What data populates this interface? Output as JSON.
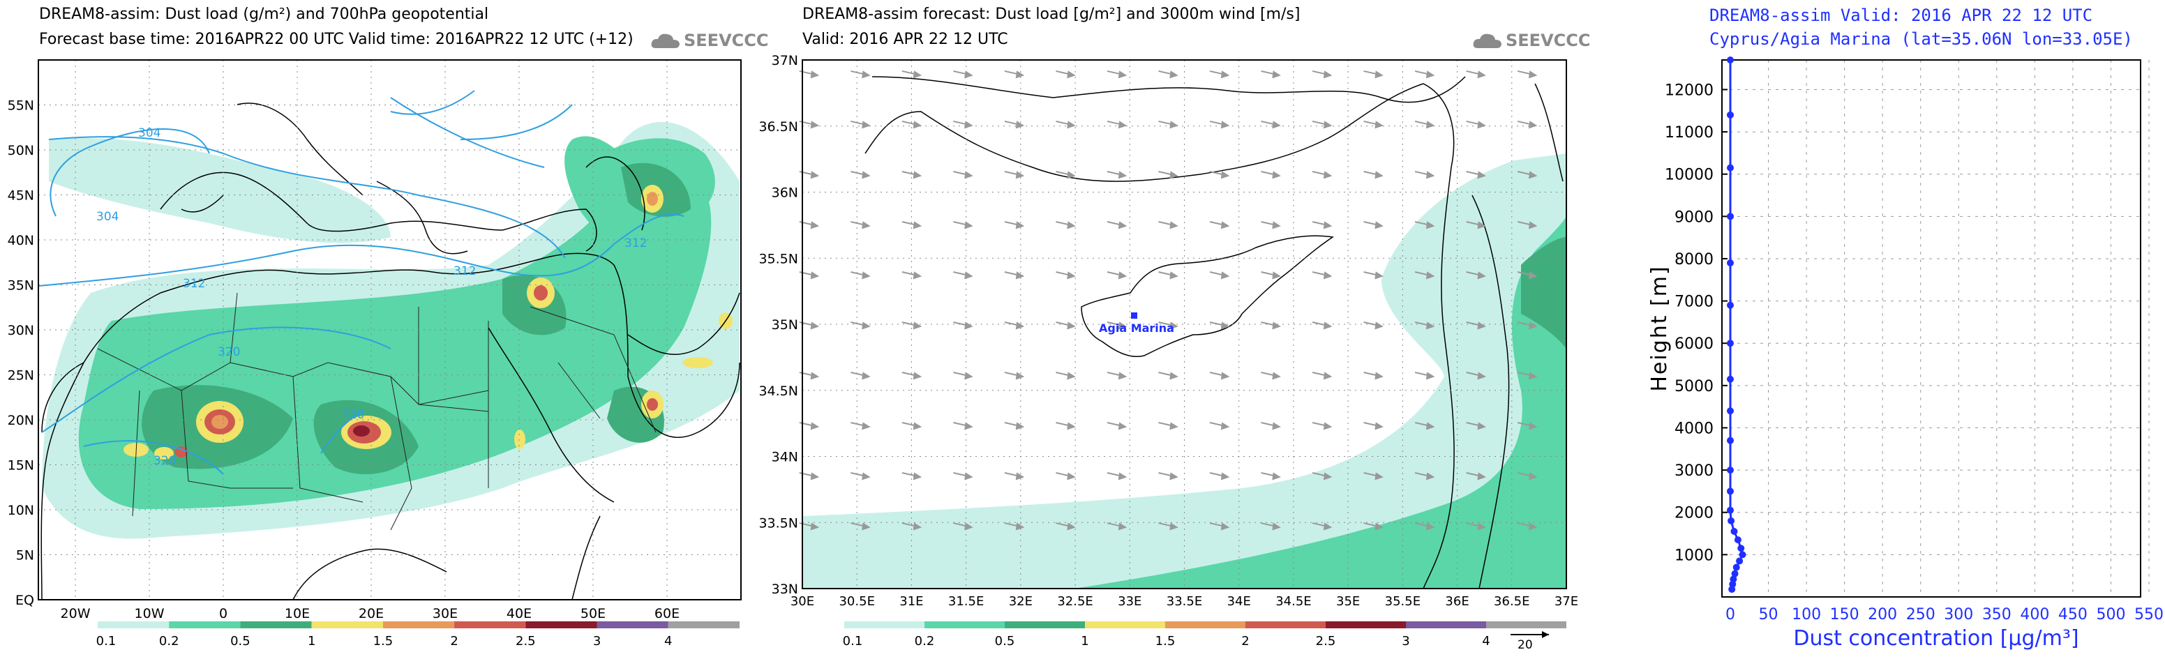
{
  "panel1": {
    "title": "DREAM8-assim: Dust load (g/m²) and 700hPa geopotential",
    "subtitle": "Forecast base time: 2016APR22 00 UTC   Valid time: 2016APR22 12 UTC   (+12)",
    "logo": "SEEVCCC",
    "lat_labels": [
      "55N",
      "50N",
      "45N",
      "40N",
      "35N",
      "30N",
      "25N",
      "20N",
      "15N",
      "10N",
      "5N",
      "EQ"
    ],
    "lon_labels": [
      "20W",
      "10W",
      "0",
      "10E",
      "20E",
      "30E",
      "40E",
      "50E",
      "60E"
    ],
    "contour_labels": [
      "304",
      "304",
      "312",
      "312",
      "312",
      "320",
      "320",
      "320"
    ],
    "colorbar_labels": [
      "0.1",
      "0.2",
      "0.5",
      "1",
      "1.5",
      "2",
      "2.5",
      "3",
      "4"
    ]
  },
  "panel2": {
    "title": "DREAM8-assim forecast: Dust load [g/m²] and 3000m wind [m/s]",
    "subtitle": "Valid: 2016 APR 22   12 UTC",
    "logo": "SEEVCCC",
    "lat_labels": [
      "37N",
      "36.5N",
      "36N",
      "35.5N",
      "35N",
      "34.5N",
      "34N",
      "33.5N",
      "33N"
    ],
    "lon_labels": [
      "30E",
      "30.5E",
      "31E",
      "31.5E",
      "32E",
      "32.5E",
      "33E",
      "33.5E",
      "34E",
      "34.5E",
      "35E",
      "35.5E",
      "36E",
      "36.5E",
      "37E"
    ],
    "station_label": "Agia Marina",
    "colorbar_labels": [
      "0.1",
      "0.2",
      "0.5",
      "1",
      "1.5",
      "2",
      "2.5",
      "3",
      "4"
    ],
    "wind_ref": "20"
  },
  "panel3": {
    "title": "DREAM8-assim  Valid: 2016 APR 22  12 UTC",
    "subtitle": "Cyprus/Agia Marina (lat=35.06N lon=33.05E)"
  },
  "colors": {
    "shade_0_1": "#c8f0e8",
    "shade_0_2": "#5ad6a8",
    "shade_0_5": "#3fae7c",
    "shade_1": "#f2e36a",
    "shade_1_5": "#e89a5a",
    "shade_2": "#d05a50",
    "shade_2_5": "#8a1a2c",
    "shade_3": "#7a5aa0",
    "shade_4": "#a0a0a0",
    "contour": "#2f9fe0",
    "profile": "#1f2fff"
  },
  "chart_data": [
    {
      "type": "heatmap",
      "title": "DREAM8-assim: Dust load (g/m²) and 700hPa geopotential",
      "xlim": [
        -25,
        70
      ],
      "ylim": [
        0,
        60
      ],
      "x_ticks": [
        "20W",
        "10W",
        "0",
        "10E",
        "20E",
        "30E",
        "40E",
        "50E",
        "60E"
      ],
      "y_ticks": [
        "EQ",
        "5N",
        "10N",
        "15N",
        "20N",
        "25N",
        "30N",
        "35N",
        "40N",
        "45N",
        "50N",
        "55N"
      ],
      "legend_levels": [
        0.1,
        0.2,
        0.5,
        1,
        1.5,
        2,
        2.5,
        3,
        4
      ],
      "grid": true,
      "legend": "bottom"
    },
    {
      "type": "heatmap",
      "title": "DREAM8-assim forecast: Dust load [g/m²] and 3000m wind [m/s]",
      "xlim": [
        30,
        37
      ],
      "ylim": [
        33,
        37
      ],
      "legend_levels": [
        0.1,
        0.2,
        0.5,
        1,
        1.5,
        2,
        2.5,
        3,
        4
      ],
      "grid": true,
      "legend": "bottom"
    },
    {
      "type": "line",
      "title": "DREAM8-assim  Valid: 2016 APR 22  12 UTC",
      "subtitle": "Cyprus/Agia Marina (lat=35.06N lon=33.05E)",
      "xlabel": "Dust concentration [μg/m³]",
      "ylabel": "Height [m]",
      "xlim": [
        0,
        550
      ],
      "ylim": [
        0,
        12700
      ],
      "x_ticks": [
        0,
        50,
        100,
        150,
        200,
        250,
        300,
        350,
        400,
        450,
        500,
        550
      ],
      "y_ticks": [
        1000,
        2000,
        3000,
        4000,
        5000,
        6000,
        7000,
        8000,
        9000,
        10000,
        11000,
        12000
      ],
      "grid": true,
      "series": [
        {
          "x": [
            0,
            0,
            0,
            0,
            0,
            0,
            0,
            0,
            0,
            0,
            0,
            0,
            0,
            1,
            5,
            10,
            14,
            16,
            12,
            8,
            6,
            4,
            3,
            2
          ],
          "y": [
            12700,
            11400,
            10150,
            9000,
            7900,
            6900,
            6000,
            5150,
            4400,
            3700,
            3000,
            2500,
            2050,
            1800,
            1550,
            1350,
            1150,
            1000,
            850,
            700,
            550,
            420,
            300,
            180
          ]
        }
      ]
    }
  ]
}
